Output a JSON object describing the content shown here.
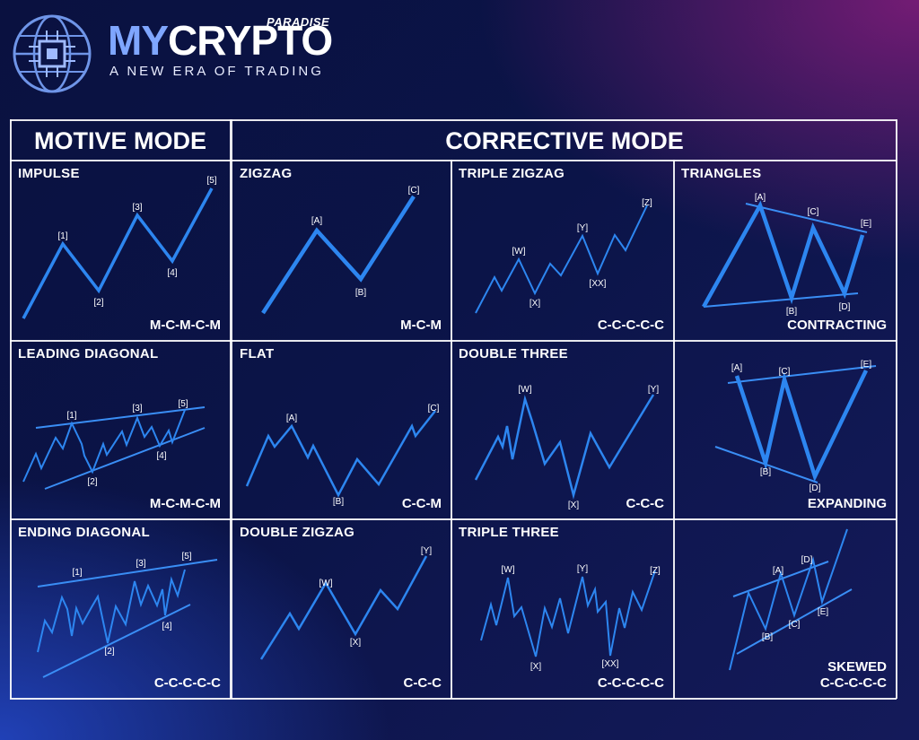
{
  "logo": {
    "icon": "globe-chip-icon",
    "brand_my": "MY",
    "brand_crypto": "CRYPTO",
    "paradise": "PARADISE",
    "tagline": "A NEW ERA OF TRADING"
  },
  "headers": {
    "motive": "MOTIVE MODE",
    "corrective": "CORRECTIVE MODE"
  },
  "colors": {
    "wave": "#2d86f0",
    "line": "#3a8ef5"
  },
  "cells": [
    {
      "id": "impulse",
      "title": "IMPULSE",
      "code": "M-C-M-C-M",
      "labels": [
        "[1]",
        "[2]",
        "[3]",
        "[4]",
        "[5]"
      ]
    },
    {
      "id": "zigzag",
      "title": "ZIGZAG",
      "code": "M-C-M",
      "labels": [
        "[A]",
        "[B]",
        "[C]"
      ]
    },
    {
      "id": "triple-zigzag",
      "title": "TRIPLE ZIGZAG",
      "code": "C-C-C-C-C",
      "labels": [
        "[W]",
        "[X]",
        "[Y]",
        "[XX]",
        "[Z]"
      ]
    },
    {
      "id": "triangles",
      "title": "TRIANGLES",
      "code": "CONTRACTING",
      "labels": [
        "[A]",
        "[B]",
        "[C]",
        "[D]",
        "[E]"
      ]
    },
    {
      "id": "leading-diagonal",
      "title": "LEADING DIAGONAL",
      "code": "M-C-M-C-M",
      "labels": [
        "[1]",
        "[2]",
        "[3]",
        "[4]",
        "[5]"
      ]
    },
    {
      "id": "flat",
      "title": "FLAT",
      "code": "C-C-M",
      "labels": [
        "[A]",
        "[B]",
        "[C]"
      ]
    },
    {
      "id": "double-three",
      "title": "DOUBLE THREE",
      "code": "C-C-C",
      "labels": [
        "[W]",
        "[X]",
        "[Y]"
      ]
    },
    {
      "id": "expanding",
      "title": "",
      "code": "EXPANDING",
      "labels": [
        "[A]",
        "[B]",
        "[C]",
        "[D]",
        "[E]"
      ]
    },
    {
      "id": "ending-diagonal",
      "title": "ENDING DIAGONAL",
      "code": "C-C-C-C-C",
      "labels": [
        "[1]",
        "[2]",
        "[3]",
        "[4]",
        "[5]"
      ]
    },
    {
      "id": "double-zigzag",
      "title": "DOUBLE ZIGZAG",
      "code": "C-C-C",
      "labels": [
        "[W]",
        "[X]",
        "[Y]"
      ]
    },
    {
      "id": "triple-three",
      "title": "TRIPLE THREE",
      "code": "C-C-C-C-C",
      "labels": [
        "[W]",
        "[X]",
        "[Y]",
        "[XX]",
        "[Z]"
      ]
    },
    {
      "id": "skewed",
      "title": "",
      "code": "C-C-C-C-C",
      "code_top": "SKEWED",
      "labels": [
        "[A]",
        "[B]",
        "[C]",
        "[D]",
        "[E]"
      ]
    }
  ]
}
